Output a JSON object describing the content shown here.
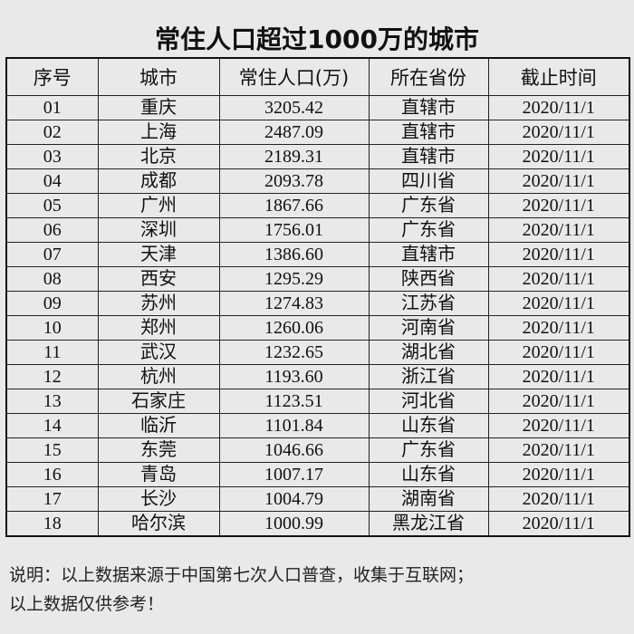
{
  "title": "常住人口超过1000万的城市",
  "table": {
    "headers": [
      "序号",
      "城市",
      "常住人口(万)",
      "所在省份",
      "截止时间"
    ],
    "rows": [
      [
        "01",
        "重庆",
        "3205.42",
        "直辖市",
        "2020/11/1"
      ],
      [
        "02",
        "上海",
        "2487.09",
        "直辖市",
        "2020/11/1"
      ],
      [
        "03",
        "北京",
        "2189.31",
        "直辖市",
        "2020/11/1"
      ],
      [
        "04",
        "成都",
        "2093.78",
        "四川省",
        "2020/11/1"
      ],
      [
        "05",
        "广州",
        "1867.66",
        "广东省",
        "2020/11/1"
      ],
      [
        "06",
        "深圳",
        "1756.01",
        "广东省",
        "2020/11/1"
      ],
      [
        "07",
        "天津",
        "1386.60",
        "直辖市",
        "2020/11/1"
      ],
      [
        "08",
        "西安",
        "1295.29",
        "陕西省",
        "2020/11/1"
      ],
      [
        "09",
        "苏州",
        "1274.83",
        "江苏省",
        "2020/11/1"
      ],
      [
        "10",
        "郑州",
        "1260.06",
        "河南省",
        "2020/11/1"
      ],
      [
        "11",
        "武汉",
        "1232.65",
        "湖北省",
        "2020/11/1"
      ],
      [
        "12",
        "杭州",
        "1193.60",
        "浙江省",
        "2020/11/1"
      ],
      [
        "13",
        "石家庄",
        "1123.51",
        "河北省",
        "2020/11/1"
      ],
      [
        "14",
        "临沂",
        "1101.84",
        "山东省",
        "2020/11/1"
      ],
      [
        "15",
        "东莞",
        "1046.66",
        "广东省",
        "2020/11/1"
      ],
      [
        "16",
        "青岛",
        "1007.17",
        "山东省",
        "2020/11/1"
      ],
      [
        "17",
        "长沙",
        "1004.79",
        "湖南省",
        "2020/11/1"
      ],
      [
        "18",
        "哈尔滨",
        "1000.99",
        "黑龙江省",
        "2020/11/1"
      ]
    ]
  },
  "notes": {
    "line1": "说明：以上数据来源于中国第七次人口普查，收集于互联网；",
    "line2": "以上数据仅供参考！"
  }
}
